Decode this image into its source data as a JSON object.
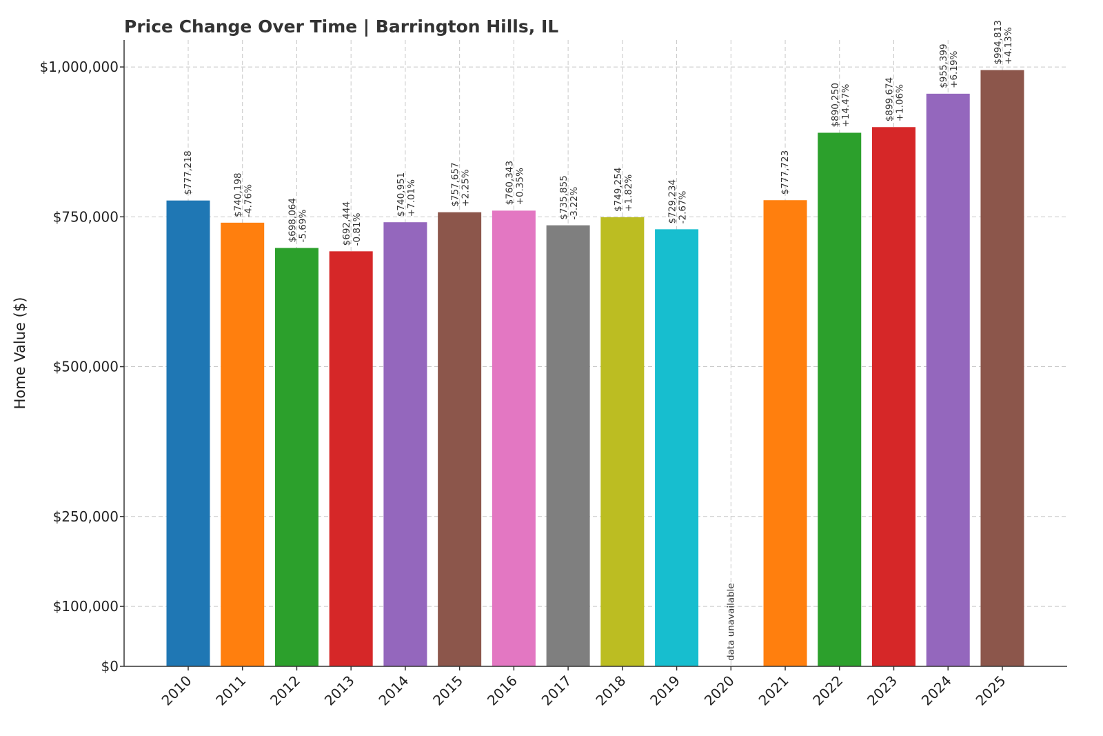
{
  "chart_data": {
    "type": "bar",
    "title": "Price Change Over Time | Barrington Hills, IL",
    "ylabel": "Home Value ($)",
    "xlabel": "",
    "ylim": [
      0,
      1045000
    ],
    "grid": true,
    "yticks": [
      0,
      100000,
      250000,
      500000,
      750000,
      1000000
    ],
    "ytick_labels": [
      "$0",
      "$100,000",
      "$250,000",
      "$500,000",
      "$750,000",
      "$1,000,000"
    ],
    "categories": [
      "2010",
      "2011",
      "2012",
      "2013",
      "2014",
      "2015",
      "2016",
      "2017",
      "2018",
      "2019",
      "2020",
      "2021",
      "2022",
      "2023",
      "2024",
      "2025"
    ],
    "values": [
      777218,
      740198,
      698064,
      692444,
      740951,
      757657,
      760343,
      735855,
      749254,
      729234,
      null,
      777723,
      890250,
      899674,
      955399,
      994813
    ],
    "value_labels": [
      "$777,218",
      "$740,198",
      "$698,064",
      "$692,444",
      "$740,951",
      "$757,657",
      "$760,343",
      "$735,855",
      "$749,254",
      "$729,234",
      "",
      "$777,723",
      "$890,250",
      "$899,674",
      "$955,399",
      "$994,813"
    ],
    "change_labels": [
      "",
      "-4.76%",
      "-5.69%",
      "-0.81%",
      "+7.01%",
      "+2.25%",
      "+0.35%",
      "-3.22%",
      "+1.82%",
      "-2.67%",
      "",
      "",
      "+14.47%",
      "+1.06%",
      "+6.19%",
      "+4.13%"
    ],
    "missing_label": "data unavailable",
    "colors": [
      "#1f77b4",
      "#ff7f0e",
      "#2ca02c",
      "#d62728",
      "#9467bd",
      "#8c564b",
      "#e377c2",
      "#7f7f7f",
      "#bcbd22",
      "#17becf",
      "#1f77b4",
      "#ff7f0e",
      "#2ca02c",
      "#d62728",
      "#9467bd",
      "#8c564b"
    ]
  }
}
